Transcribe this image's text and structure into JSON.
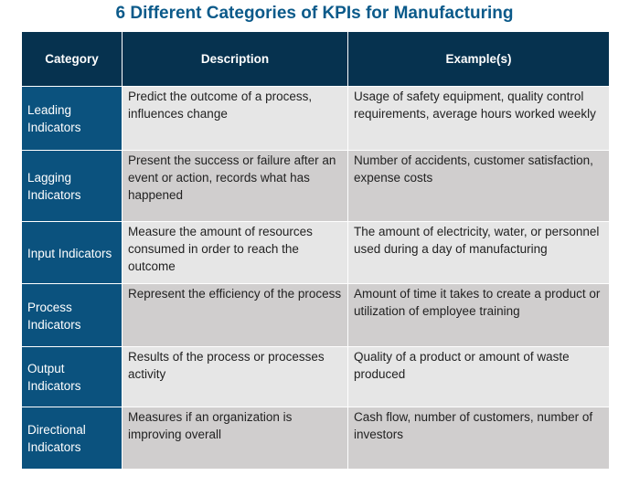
{
  "title": "6 Different Categories of KPIs for Manufacturing",
  "headers": [
    "Category",
    "Description",
    "Example(s)"
  ],
  "rows": [
    {
      "category": "Leading Indicators",
      "description": "Predict the outcome of a process, influences change",
      "examples": "Usage of safety equipment, quality control requirements, average hours worked weekly"
    },
    {
      "category": "Lagging Indicators",
      "description": "Present the success or failure after an event or action, records what has happened",
      "examples": "Number of accidents, customer satisfaction, expense costs"
    },
    {
      "category": "Input Indicators",
      "description": "Measure the amount of resources consumed in order to reach the outcome",
      "examples": "The amount of electricity, water, or personnel used during a day of manufacturing"
    },
    {
      "category": "Process Indicators",
      "description": "Represent the efficiency of the process",
      "examples": "Amount of time it takes to create a product or utilization of employee training"
    },
    {
      "category": "Output Indicators",
      "description": "Results of the process or processes activity",
      "examples": "Quality of a product or amount of waste produced"
    },
    {
      "category": "Directional Indicators",
      "description": "Measures if an organization is improving overall",
      "examples": "Cash flow, number of customers, number of investors"
    }
  ],
  "colors": {
    "title": "#0b5a8a",
    "header": "#06324f",
    "category": "#0b527e",
    "row_light": "#e6e6e6",
    "row_dark": "#d0cece"
  }
}
